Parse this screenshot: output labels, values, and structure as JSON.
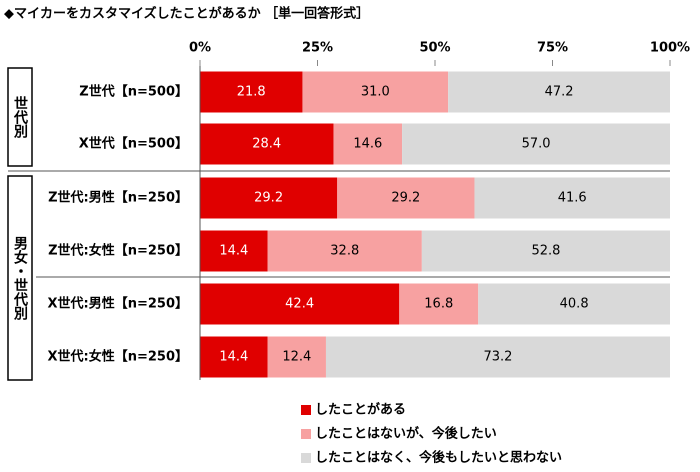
{
  "chart_data": {
    "type": "stacked-bar-horizontal",
    "title": "◆マイカーをカスタマイズしたことがあるか ［単一回答形式］",
    "group_labels": [
      "世代別",
      "男女・世代別"
    ],
    "categories": [
      "Z世代【n=500】",
      "X世代【n=500】",
      "Z世代:男性【n=250】",
      "Z世代:女性【n=250】",
      "X世代:男性【n=250】",
      "X世代:女性【n=250】"
    ],
    "series": [
      {
        "name": "したことがある",
        "color": "#e00000",
        "values": [
          21.8,
          28.4,
          29.2,
          14.4,
          42.4,
          14.4
        ],
        "value_labels": [
          "21.8",
          "28.4",
          "29.2",
          "14.4",
          "42.4",
          "14.4"
        ]
      },
      {
        "name": "したことはないが、今後したい",
        "color": "#f7a1a1",
        "values": [
          31.0,
          14.6,
          29.2,
          32.8,
          16.8,
          12.4
        ],
        "value_labels": [
          "31.0",
          "14.6",
          "29.2",
          "32.8",
          "16.8",
          "12.4"
        ]
      },
      {
        "name": "したことはなく、今後もしたいと思わない",
        "color": "#d9d9d9",
        "values": [
          47.2,
          57.0,
          41.6,
          52.8,
          40.8,
          73.2
        ],
        "value_labels": [
          "47.2",
          "57.0",
          "41.6",
          "52.8",
          "40.8",
          "73.2"
        ]
      }
    ],
    "xlim": [
      0,
      100
    ],
    "xticks": [
      {
        "value": 0,
        "label": "0%"
      },
      {
        "value": 25,
        "label": "25%"
      },
      {
        "value": 50,
        "label": "50%"
      },
      {
        "value": 75,
        "label": "75%"
      },
      {
        "value": 100,
        "label": "100%"
      }
    ]
  }
}
